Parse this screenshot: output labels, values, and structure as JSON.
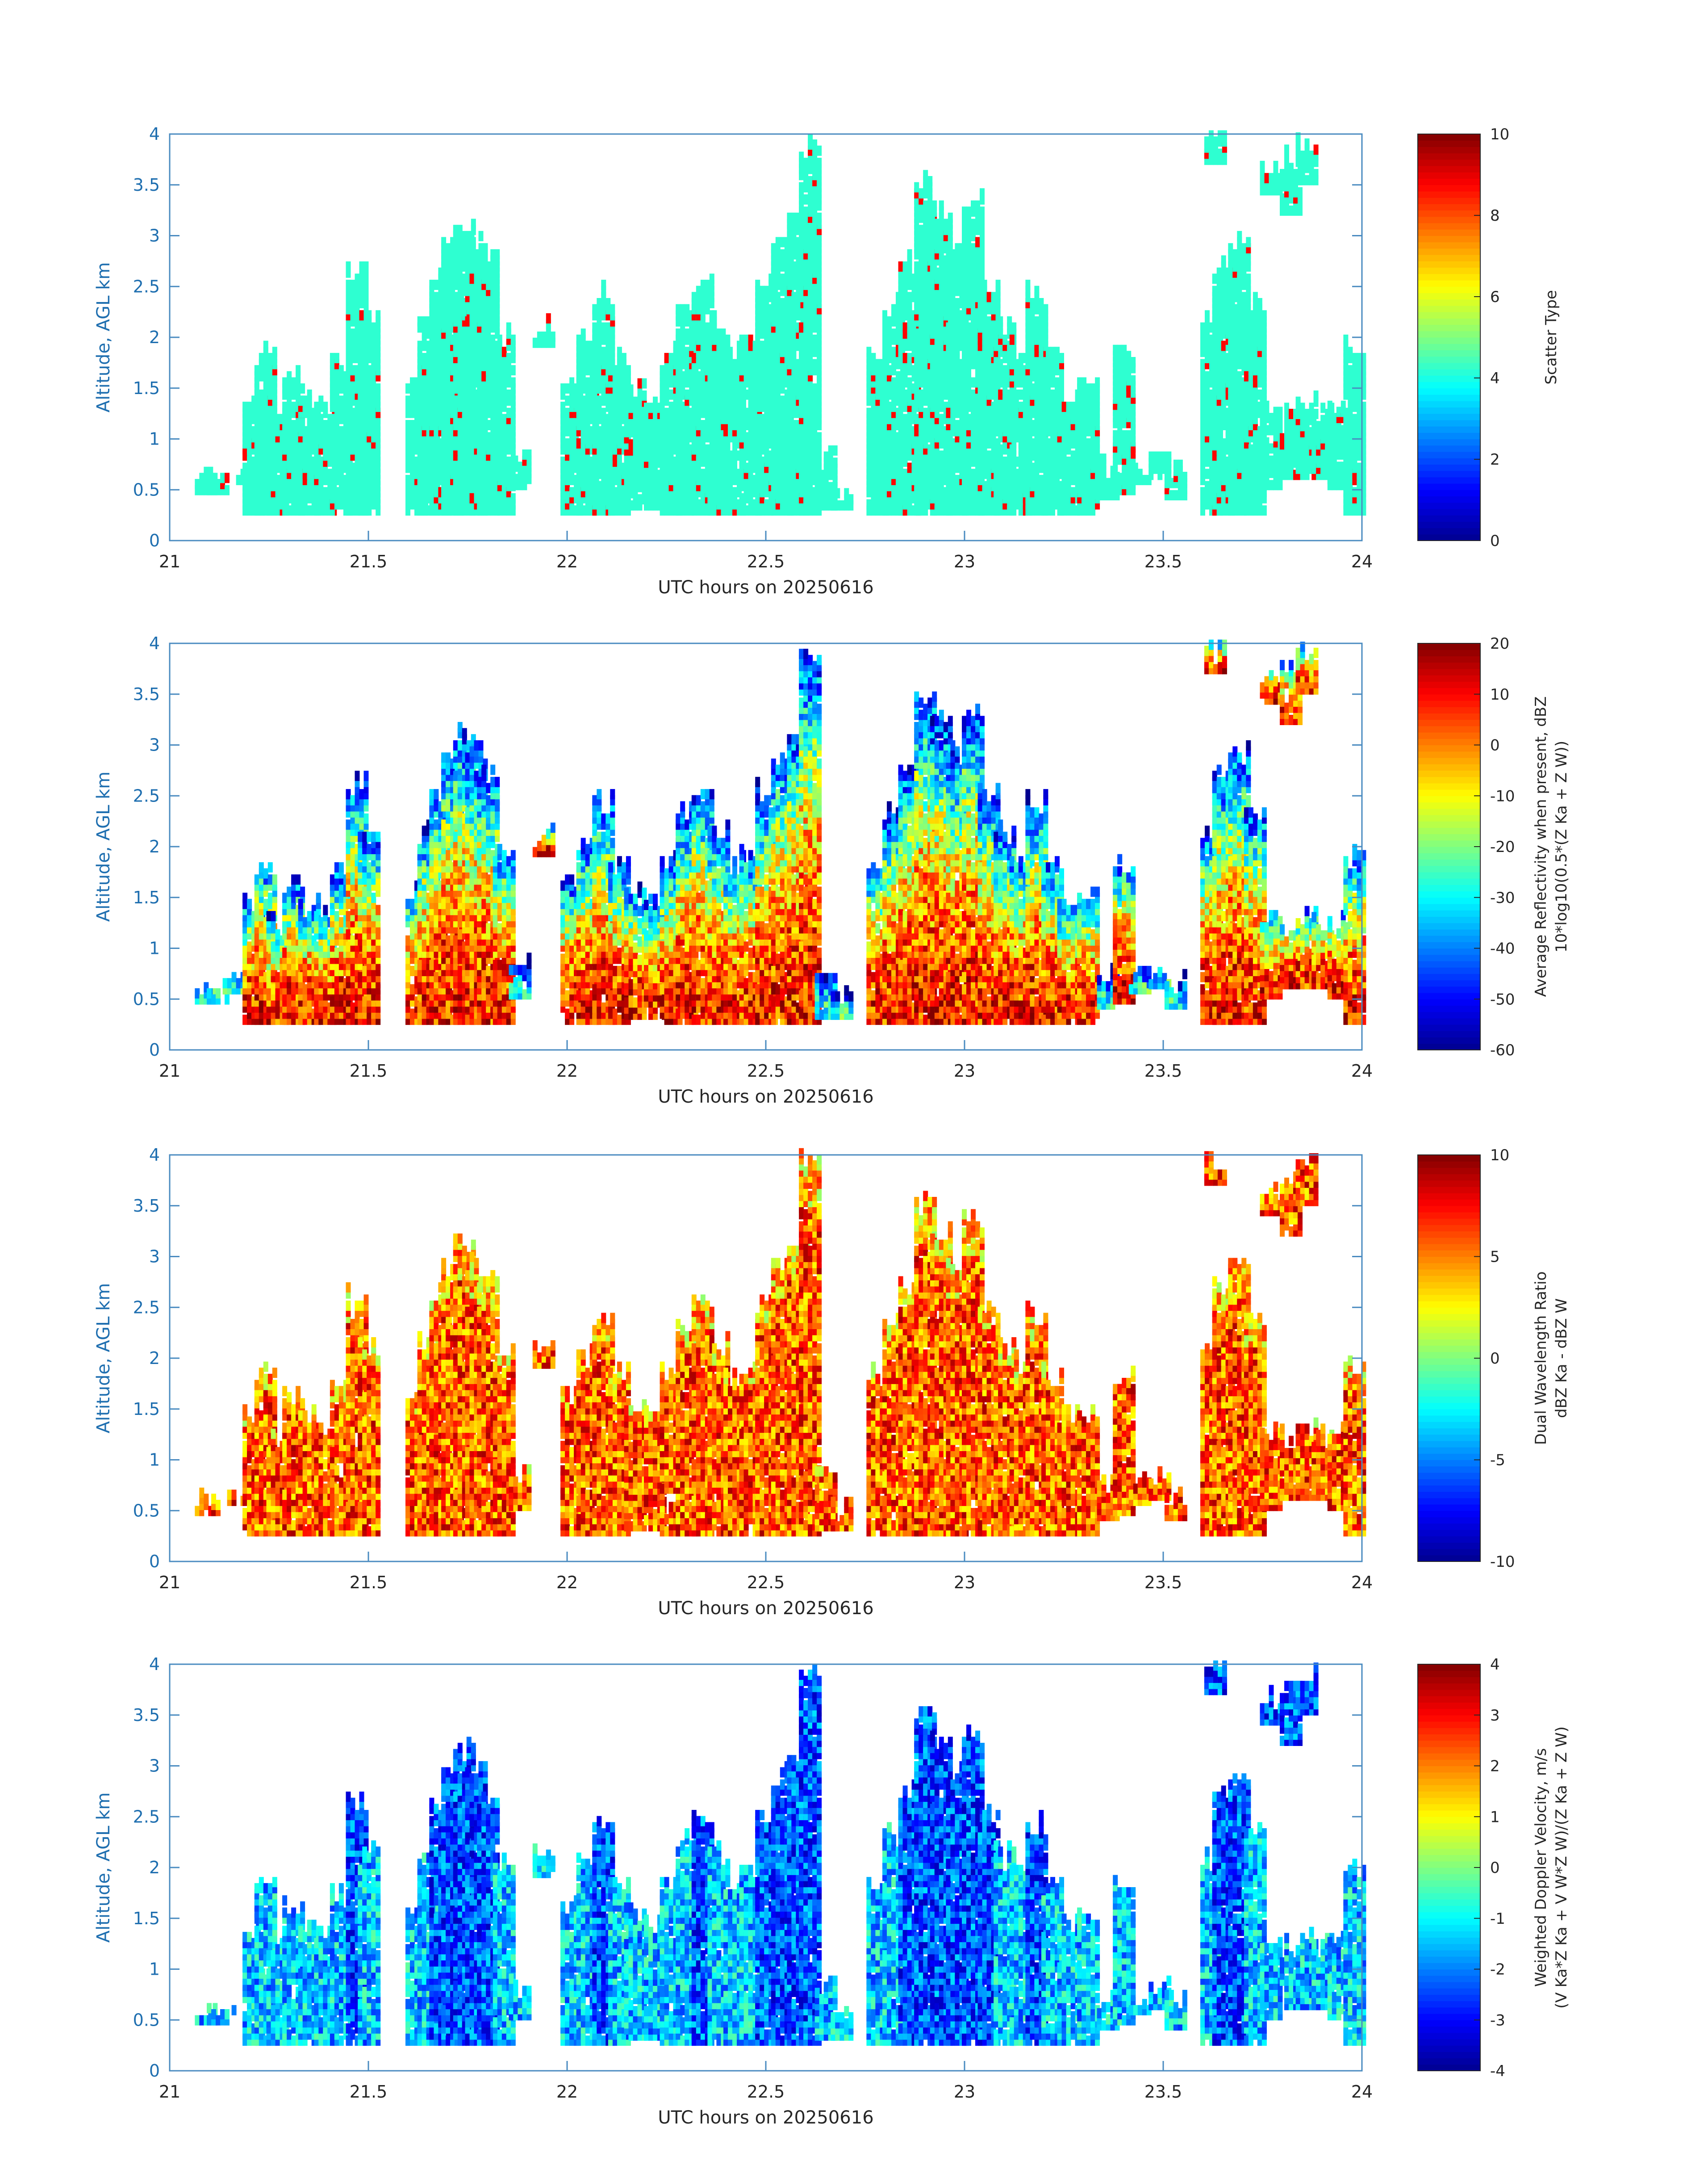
{
  "xlabel": "UTC hours on 20250616",
  "ylabel": "Altitude, AGL km",
  "colormap": [
    "#00008f",
    "#0000ff",
    "#0080ff",
    "#00ffff",
    "#80ff80",
    "#ffff00",
    "#ff8000",
    "#ff0000",
    "#800000"
  ],
  "chart_data": [
    {
      "type": "heatmap",
      "xlabel": "UTC hours on 20250616",
      "ylabel": "Altitude, AGL km",
      "xlim": [
        21,
        24
      ],
      "ylim": [
        0,
        4
      ],
      "xticks": [
        "21",
        "21.5",
        "22",
        "22.5",
        "23",
        "23.5",
        "24"
      ],
      "yticks": [
        "0",
        "0.5",
        "1",
        "1.5",
        "2",
        "2.5",
        "3",
        "3.5",
        "4"
      ],
      "colorbar": {
        "label_lines": [
          "Scatter Type"
        ],
        "range": [
          0,
          10
        ],
        "ticks": [
          "0",
          "2",
          "4",
          "6",
          "8",
          "10"
        ]
      },
      "note_values": {
        "dominant": 4,
        "secondary": 9
      }
    },
    {
      "type": "heatmap",
      "xlabel": "UTC hours on 20250616",
      "ylabel": "Altitude, AGL km",
      "xlim": [
        21,
        24
      ],
      "ylim": [
        0,
        4
      ],
      "xticks": [
        "21",
        "21.5",
        "22",
        "22.5",
        "23",
        "23.5",
        "24"
      ],
      "yticks": [
        "0",
        "0.5",
        "1",
        "1.5",
        "2",
        "2.5",
        "3",
        "3.5",
        "4"
      ],
      "colorbar": {
        "label_lines": [
          "Average Reflectivity when present, dBZ",
          "10*log10(0.5*(Z Ka + Z W))"
        ],
        "range": [
          -60,
          20
        ],
        "ticks": [
          "-60",
          "-50",
          "-40",
          "-30",
          "-20",
          "-10",
          "0",
          "10",
          "20"
        ]
      }
    },
    {
      "type": "heatmap",
      "xlabel": "UTC hours on 20250616",
      "ylabel": "Altitude, AGL km",
      "xlim": [
        21,
        24
      ],
      "ylim": [
        0,
        4
      ],
      "xticks": [
        "21",
        "21.5",
        "22",
        "22.5",
        "23",
        "23.5",
        "24"
      ],
      "yticks": [
        "0",
        "0.5",
        "1",
        "1.5",
        "2",
        "2.5",
        "3",
        "3.5",
        "4"
      ],
      "colorbar": {
        "label_lines": [
          "Dual Wavelength Ratio",
          "dBZ Ka - dBZ W"
        ],
        "range": [
          -10,
          10
        ],
        "ticks": [
          "-10",
          "-5",
          "0",
          "5",
          "10"
        ]
      }
    },
    {
      "type": "heatmap",
      "xlabel": "UTC hours on 20250616",
      "ylabel": "Altitude, AGL km",
      "xlim": [
        21,
        24
      ],
      "ylim": [
        0,
        4
      ],
      "xticks": [
        "21",
        "21.5",
        "22",
        "22.5",
        "23",
        "23.5",
        "24"
      ],
      "yticks": [
        "0",
        "0.5",
        "1",
        "1.5",
        "2",
        "2.5",
        "3",
        "3.5",
        "4"
      ],
      "colorbar": {
        "label_lines": [
          "Weighted Doppler Velocity, m/s",
          "(V Ka*Z Ka + V W*Z W)/(Z Ka + Z W)"
        ],
        "range": [
          -4,
          4
        ],
        "ticks": [
          "-4",
          "-3",
          "-2",
          "-1",
          "0",
          "1",
          "2",
          "3",
          "4"
        ]
      }
    }
  ],
  "columns": [
    [
      21.07,
      0.45,
      0.7
    ],
    [
      21.1,
      0.45,
      0.65
    ],
    [
      21.14,
      0.55,
      0.7
    ],
    [
      21.19,
      0.25,
      1.5
    ],
    [
      21.22,
      0.25,
      1.9
    ],
    [
      21.25,
      0.25,
      1.3
    ],
    [
      21.29,
      0.25,
      1.7
    ],
    [
      21.33,
      0.25,
      1.5
    ],
    [
      21.37,
      0.25,
      1.4
    ],
    [
      21.41,
      0.25,
      1.8
    ],
    [
      21.45,
      0.25,
      2.7
    ],
    [
      21.48,
      0.25,
      2.2
    ],
    [
      21.6,
      0.25,
      1.6
    ],
    [
      21.63,
      0.25,
      2.2
    ],
    [
      21.66,
      0.25,
      2.7
    ],
    [
      21.69,
      0.25,
      3.0
    ],
    [
      21.72,
      0.25,
      3.2
    ],
    [
      21.75,
      0.25,
      3.0
    ],
    [
      21.78,
      0.25,
      2.8
    ],
    [
      21.82,
      0.25,
      2.1
    ],
    [
      21.86,
      0.5,
      0.9
    ],
    [
      21.92,
      1.9,
      2.2
    ],
    [
      21.99,
      0.25,
      1.7
    ],
    [
      22.03,
      0.25,
      2.1
    ],
    [
      22.07,
      0.25,
      2.5
    ],
    [
      22.11,
      0.25,
      1.9
    ],
    [
      22.15,
      0.3,
      1.6
    ],
    [
      22.2,
      0.3,
      1.5
    ],
    [
      22.24,
      0.25,
      1.9
    ],
    [
      22.28,
      0.25,
      2.4
    ],
    [
      22.32,
      0.25,
      2.6
    ],
    [
      22.36,
      0.25,
      2.2
    ],
    [
      22.4,
      0.25,
      1.9
    ],
    [
      22.44,
      0.25,
      2.0
    ],
    [
      22.48,
      0.25,
      2.6
    ],
    [
      22.52,
      0.25,
      3.0
    ],
    [
      22.56,
      0.25,
      3.2
    ],
    [
      22.59,
      0.25,
      4.0
    ],
    [
      22.63,
      0.3,
      0.9
    ],
    [
      22.67,
      0.3,
      0.6
    ],
    [
      22.76,
      0.25,
      1.9
    ],
    [
      22.8,
      0.25,
      2.4
    ],
    [
      22.84,
      0.25,
      2.8
    ],
    [
      22.88,
      0.25,
      3.6
    ],
    [
      22.92,
      0.25,
      3.3
    ],
    [
      22.96,
      0.25,
      3.0
    ],
    [
      23.0,
      0.25,
      3.4
    ],
    [
      23.04,
      0.25,
      2.6
    ],
    [
      23.08,
      0.25,
      2.2
    ],
    [
      23.12,
      0.25,
      2.0
    ],
    [
      23.16,
      0.25,
      2.5
    ],
    [
      23.2,
      0.25,
      1.9
    ],
    [
      23.24,
      0.25,
      1.5
    ],
    [
      23.29,
      0.25,
      1.6
    ],
    [
      23.34,
      0.4,
      0.8
    ],
    [
      23.38,
      0.45,
      1.9
    ],
    [
      23.42,
      0.55,
      0.8
    ],
    [
      23.47,
      0.6,
      0.9
    ],
    [
      23.51,
      0.4,
      0.75
    ],
    [
      23.6,
      0.25,
      2.2
    ],
    [
      23.63,
      0.25,
      2.8
    ],
    [
      23.67,
      0.25,
      3.0
    ],
    [
      23.71,
      0.25,
      2.4
    ],
    [
      23.75,
      0.5,
      1.4
    ],
    [
      23.8,
      0.6,
      1.3
    ],
    [
      23.84,
      0.6,
      1.4
    ],
    [
      23.88,
      0.6,
      1.3
    ],
    [
      23.92,
      0.5,
      1.4
    ],
    [
      23.96,
      0.25,
      2.0
    ],
    [
      23.61,
      3.7,
      4.0
    ],
    [
      23.75,
      3.4,
      3.75
    ],
    [
      23.8,
      3.2,
      3.85
    ],
    [
      23.84,
      3.5,
      4.0
    ]
  ]
}
